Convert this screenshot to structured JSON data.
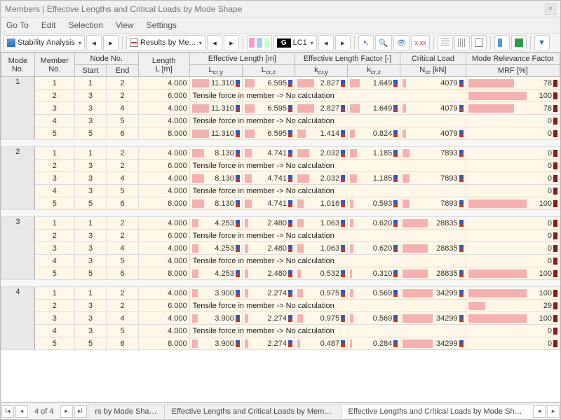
{
  "window": {
    "title": "Members | Effective Lengths and Critical Loads by Mode Shape"
  },
  "menu": [
    "Go To",
    "Edit",
    "Selection",
    "View",
    "Settings"
  ],
  "toolbar": {
    "stability_label": "Stability Analysis",
    "results_label": "Results by Me...",
    "lc_tag": "G",
    "lc_label": "LC1"
  },
  "colors": {
    "bar": "#f6b0b0",
    "row_alt": "#fff8e8",
    "row_nrm": "#ffffff",
    "header": "#efefef",
    "mode_bg": "#e8e8e8",
    "border": "#bbbbbb"
  },
  "headers": {
    "mode": "Mode\nNo.",
    "member": "Member\nNo.",
    "node": "Node No.",
    "start": "Start",
    "end": "End",
    "length": "Length\nL [m]",
    "efflen": "Effective Length [m]",
    "lcry": "L<sub>cr,y</sub>",
    "lcrz": "L<sub>cr,z</sub>",
    "efffac": "Effective Length Factor [-]",
    "kcry": "k<sub>cr,y</sub>",
    "kcrz": "k<sub>cr,z</sub>",
    "crit": "Critical Load",
    "ncr": "N<sub>cr</sub> [kN]",
    "mrf_top": "Mode Relevance Factor",
    "mrf": "MRF [%]"
  },
  "tensile_text": "Tensile force in member -> No calculation",
  "groups": [
    {
      "mode": 1,
      "rows": [
        {
          "m": 1,
          "s": 1,
          "e": 2,
          "L": "4.000",
          "lcy": "11.310",
          "lcz": "6.595",
          "kcy": "2.827",
          "kcz": "1.649",
          "ncr": "4079",
          "mrf": 78,
          "b": {
            "lcy": 1.0,
            "lcz": 0.58,
            "kcy": 1.0,
            "kcz": 0.58,
            "ncr": 0.12,
            "mrf": 0.78
          }
        },
        {
          "m": 2,
          "s": 3,
          "e": 2,
          "L": "6.000",
          "tensile": true,
          "mrf": 100,
          "b": {
            "mrf": 1.0
          }
        },
        {
          "m": 3,
          "s": 3,
          "e": 4,
          "L": "4.000",
          "lcy": "11.310",
          "lcz": "6.595",
          "kcy": "2.827",
          "kcz": "1.649",
          "ncr": "4079",
          "mrf": 78,
          "b": {
            "lcy": 1.0,
            "lcz": 0.58,
            "kcy": 1.0,
            "kcz": 0.58,
            "ncr": 0.12,
            "mrf": 0.78
          }
        },
        {
          "m": 4,
          "s": 3,
          "e": 5,
          "L": "4.000",
          "tensile": true,
          "mrf": 0,
          "b": {
            "mrf": 0
          }
        },
        {
          "m": 5,
          "s": 5,
          "e": 6,
          "L": "8.000",
          "lcy": "11.310",
          "lcz": "6.595",
          "kcy": "1.414",
          "kcz": "0.824",
          "ncr": "4079",
          "mrf": 0,
          "b": {
            "lcy": 1.0,
            "lcz": 0.58,
            "kcy": 0.5,
            "kcz": 0.29,
            "ncr": 0.12,
            "mrf": 0
          }
        }
      ]
    },
    {
      "mode": 2,
      "rows": [
        {
          "m": 1,
          "s": 1,
          "e": 2,
          "L": "4.000",
          "lcy": "8.130",
          "lcz": "4.741",
          "kcy": "2.032",
          "kcz": "1.185",
          "ncr": "7893",
          "mrf": 0,
          "b": {
            "lcy": 0.72,
            "lcz": 0.42,
            "kcy": 0.72,
            "kcz": 0.42,
            "ncr": 0.23,
            "mrf": 0
          }
        },
        {
          "m": 2,
          "s": 3,
          "e": 2,
          "L": "6.000",
          "tensile": true,
          "mrf": 0,
          "b": {
            "mrf": 0
          }
        },
        {
          "m": 3,
          "s": 3,
          "e": 4,
          "L": "4.000",
          "lcy": "8.130",
          "lcz": "4.741",
          "kcy": "2.032",
          "kcz": "1.185",
          "ncr": "7893",
          "mrf": 0,
          "b": {
            "lcy": 0.72,
            "lcz": 0.42,
            "kcy": 0.72,
            "kcz": 0.42,
            "ncr": 0.23,
            "mrf": 0
          }
        },
        {
          "m": 4,
          "s": 3,
          "e": 5,
          "L": "4.000",
          "tensile": true,
          "mrf": 0,
          "b": {
            "mrf": 0
          }
        },
        {
          "m": 5,
          "s": 5,
          "e": 6,
          "L": "8.000",
          "lcy": "8.130",
          "lcz": "4.741",
          "kcy": "1.016",
          "kcz": "0.593",
          "ncr": "7893",
          "mrf": 100,
          "b": {
            "lcy": 0.72,
            "lcz": 0.42,
            "kcy": 0.36,
            "kcz": 0.21,
            "ncr": 0.23,
            "mrf": 1.0
          }
        }
      ]
    },
    {
      "mode": 3,
      "rows": [
        {
          "m": 1,
          "s": 1,
          "e": 2,
          "L": "4.000",
          "lcy": "4.253",
          "lcz": "2.480",
          "kcy": "1.063",
          "kcz": "0.620",
          "ncr": "28835",
          "mrf": 0,
          "b": {
            "lcy": 0.38,
            "lcz": 0.22,
            "kcy": 0.38,
            "kcz": 0.22,
            "ncr": 0.84,
            "mrf": 0
          }
        },
        {
          "m": 2,
          "s": 3,
          "e": 2,
          "L": "6.000",
          "tensile": true,
          "mrf": 0,
          "b": {
            "mrf": 0
          }
        },
        {
          "m": 3,
          "s": 3,
          "e": 4,
          "L": "4.000",
          "lcy": "4.253",
          "lcz": "2.480",
          "kcy": "1.063",
          "kcz": "0.620",
          "ncr": "28835",
          "mrf": 0,
          "b": {
            "lcy": 0.38,
            "lcz": 0.22,
            "kcy": 0.38,
            "kcz": 0.22,
            "ncr": 0.84,
            "mrf": 0
          }
        },
        {
          "m": 4,
          "s": 3,
          "e": 5,
          "L": "4.000",
          "tensile": true,
          "mrf": 0,
          "b": {
            "mrf": 0
          }
        },
        {
          "m": 5,
          "s": 5,
          "e": 6,
          "L": "8.000",
          "lcy": "4.253",
          "lcz": "2.480",
          "kcy": "0.532",
          "kcz": "0.310",
          "ncr": "28835",
          "mrf": 100,
          "b": {
            "lcy": 0.38,
            "lcz": 0.22,
            "kcy": 0.19,
            "kcz": 0.11,
            "ncr": 0.84,
            "mrf": 1.0
          }
        }
      ]
    },
    {
      "mode": 4,
      "rows": [
        {
          "m": 1,
          "s": 1,
          "e": 2,
          "L": "4.000",
          "lcy": "3.900",
          "lcz": "2.274",
          "kcy": "0.975",
          "kcz": "0.569",
          "ncr": "34299",
          "mrf": 100,
          "b": {
            "lcy": 0.34,
            "lcz": 0.2,
            "kcy": 0.34,
            "kcz": 0.2,
            "ncr": 1.0,
            "mrf": 1.0
          }
        },
        {
          "m": 2,
          "s": 3,
          "e": 2,
          "L": "6.000",
          "tensile": true,
          "mrf": 29,
          "b": {
            "mrf": 0.29
          }
        },
        {
          "m": 3,
          "s": 3,
          "e": 4,
          "L": "4.000",
          "lcy": "3.900",
          "lcz": "2.274",
          "kcy": "0.975",
          "kcz": "0.569",
          "ncr": "34299",
          "mrf": 100,
          "b": {
            "lcy": 0.34,
            "lcz": 0.2,
            "kcy": 0.34,
            "kcz": 0.2,
            "ncr": 1.0,
            "mrf": 1.0
          }
        },
        {
          "m": 4,
          "s": 3,
          "e": 5,
          "L": "4.000",
          "tensile": true,
          "mrf": 0,
          "b": {
            "mrf": 0
          }
        },
        {
          "m": 5,
          "s": 5,
          "e": 6,
          "L": "8.000",
          "lcy": "3.900",
          "lcz": "2.274",
          "kcy": "0.487",
          "kcz": "0.284",
          "ncr": "34299",
          "mrf": 0,
          "b": {
            "lcy": 0.34,
            "lcz": 0.2,
            "kcy": 0.17,
            "kcz": 0.1,
            "ncr": 1.0,
            "mrf": 0
          }
        }
      ]
    }
  ],
  "footer": {
    "page": "4 of 4",
    "tabs": [
      "rs by Mode Shape",
      "Effective Lengths and Critical Loads by Member",
      "Effective Lengths and Critical Loads by Mode Shape"
    ],
    "active_tab": 2
  }
}
